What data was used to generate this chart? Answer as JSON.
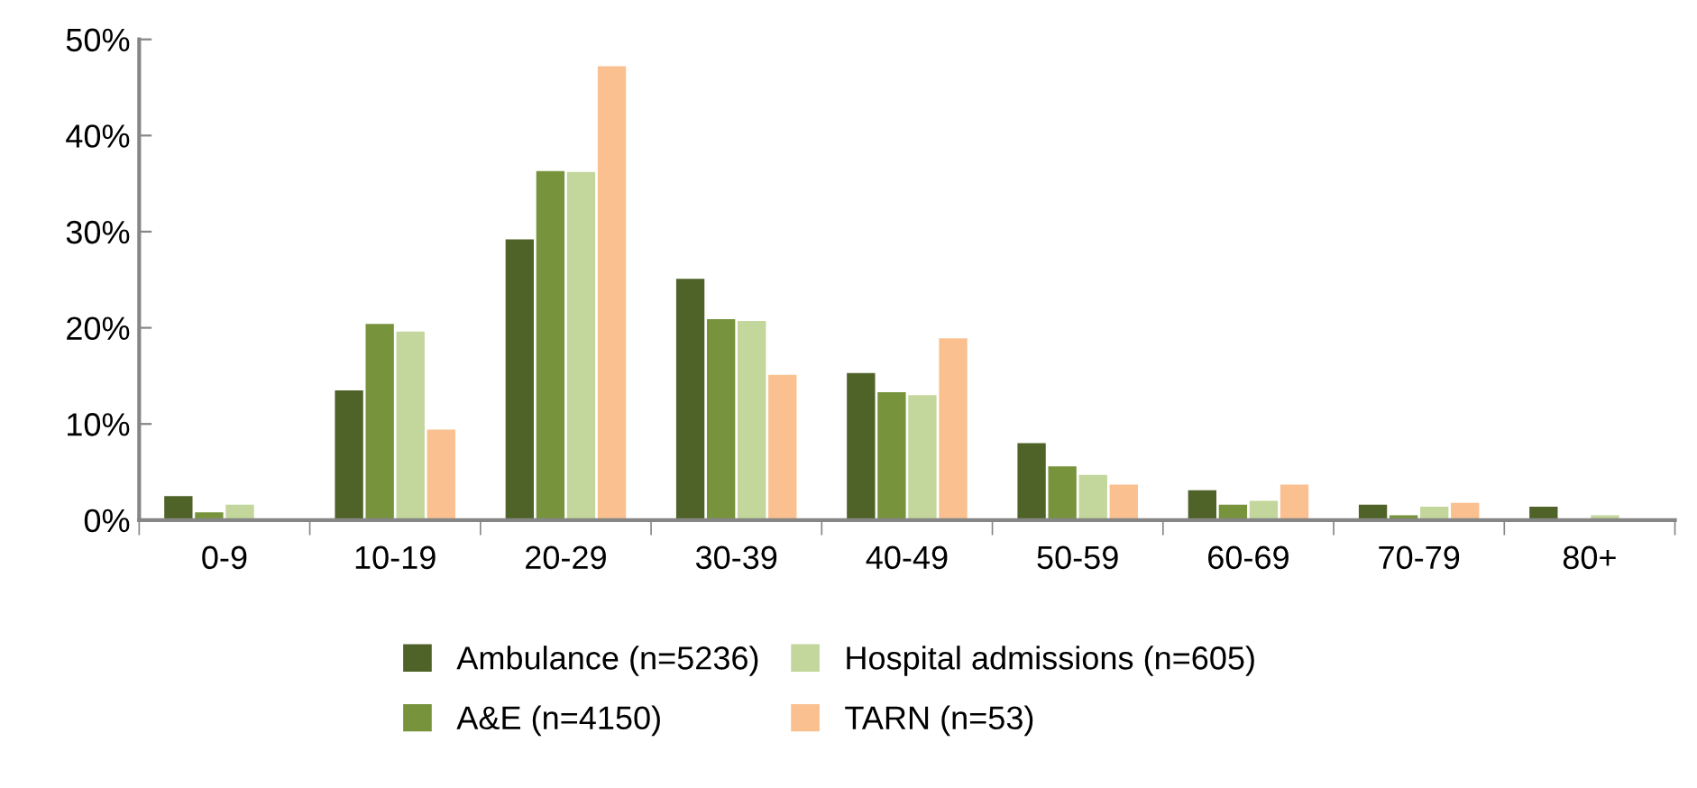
{
  "chart_data": {
    "type": "bar",
    "categories": [
      "0-9",
      "10-19",
      "20-29",
      "30-39",
      "40-49",
      "50-59",
      "60-69",
      "70-79",
      "80+"
    ],
    "series": [
      {
        "name": "Ambulance (n=5236)",
        "color": "#4f6228",
        "values": [
          2.5,
          13.5,
          29.2,
          25.1,
          15.3,
          8.0,
          3.1,
          1.6,
          1.4
        ]
      },
      {
        "name": "A&E (n=4150)",
        "color": "#77933c",
        "values": [
          0.8,
          20.4,
          36.3,
          20.9,
          13.3,
          5.6,
          1.6,
          0.5,
          0
        ]
      },
      {
        "name": "Hospital admissions (n=605)",
        "color": "#c3d69b",
        "values": [
          1.6,
          19.6,
          36.2,
          20.7,
          13.0,
          4.7,
          2.0,
          1.4,
          0.5
        ]
      },
      {
        "name": "TARN (n=53)",
        "color": "#fac090",
        "values": [
          0,
          9.4,
          47.2,
          15.1,
          18.9,
          3.7,
          3.7,
          1.8,
          0
        ]
      }
    ],
    "ylim": [
      0,
      50
    ],
    "yticks": [
      {
        "value": 0,
        "label": "0%"
      },
      {
        "value": 10,
        "label": "10%"
      },
      {
        "value": 20,
        "label": "20%"
      },
      {
        "value": 30,
        "label": "30%"
      },
      {
        "value": 40,
        "label": "40%"
      },
      {
        "value": 50,
        "label": "50%"
      }
    ],
    "grid": false,
    "legend": "bottom"
  }
}
